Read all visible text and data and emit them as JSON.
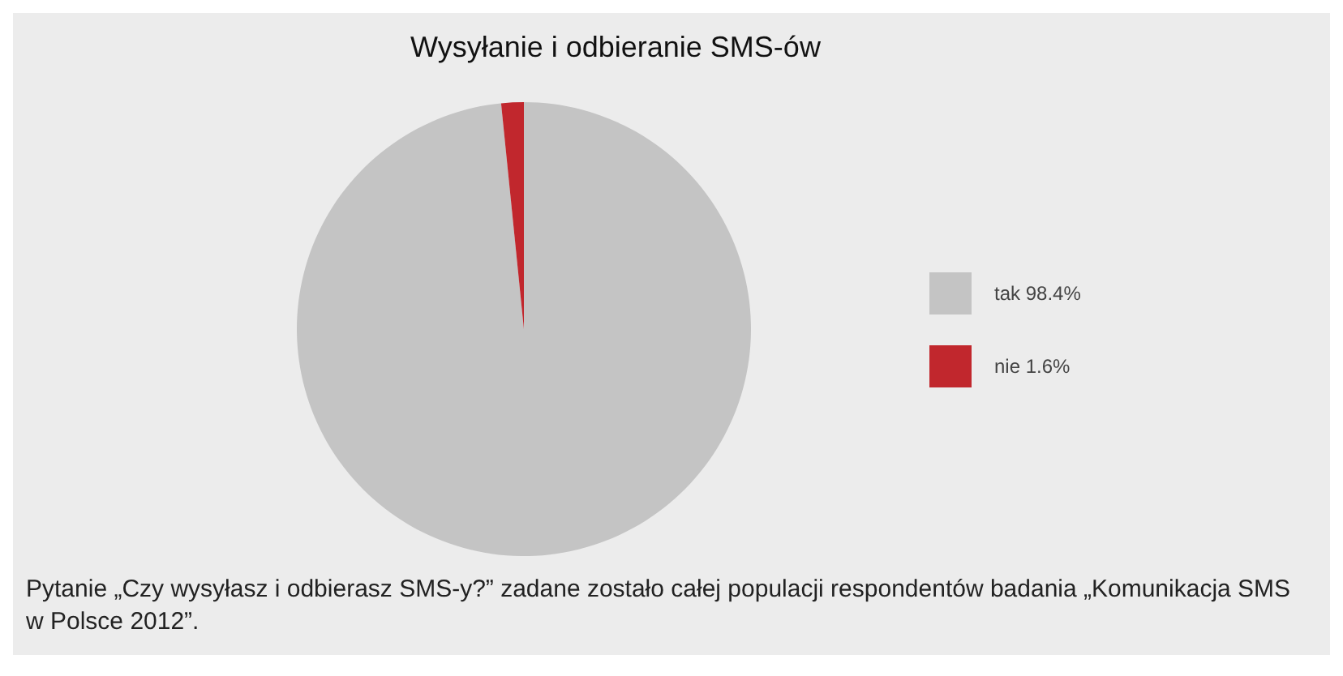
{
  "chart_data": {
    "type": "pie",
    "title": "Wysyłanie i odbieranie SMS-ów",
    "categories": [
      "tak",
      "nie"
    ],
    "values": [
      98.4,
      1.6
    ],
    "value_labels": [
      "98.4%",
      "1.6%"
    ],
    "colors": [
      "#c4c4c4",
      "#c1272d"
    ],
    "legend": "right",
    "annotations": [
      "Pytanie „Czy wysyłasz i odbierasz SMS-y?” zadane zostało całej populacji respondentów badania „Komunikacja SMS w Polsce 2012”."
    ]
  }
}
